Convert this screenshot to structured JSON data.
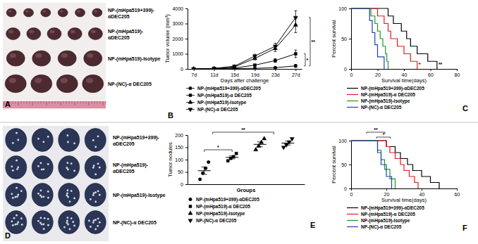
{
  "chart_data": [
    {
      "type": "photo",
      "panel_label": "A",
      "labels": [
        [
          "NP-(mHpa519+399)-",
          "αDEC205"
        ],
        [
          "NP-(mHpa519)-",
          "αDEC205"
        ],
        [
          "NP-(mHpa519)-Isotype"
        ],
        [
          "NP-(NC)-α DEC205"
        ]
      ]
    },
    {
      "type": "line",
      "panel_label": "B",
      "xlabel": "Days after challenge",
      "ylabel": "Tumor volume (mm³)",
      "categories": [
        "7d",
        "11d",
        "15d",
        "19d",
        "23d",
        "27d"
      ],
      "ylim": [
        0,
        4000
      ],
      "yticks": [
        0,
        1000,
        2000,
        3000,
        4000
      ],
      "series": [
        {
          "name": "NP-(mHpa519+399)-αDEC205",
          "color": "#000000",
          "marker": "circle",
          "values": [
            0,
            5,
            20,
            40,
            80,
            200
          ],
          "errors": [
            0,
            3,
            10,
            20,
            40,
            100
          ]
        },
        {
          "name": "NP-(mHpa519)-α DEC205",
          "color": "#000000",
          "marker": "square",
          "values": [
            0,
            15,
            60,
            250,
            550,
            1000
          ],
          "errors": [
            0,
            5,
            20,
            60,
            120,
            250
          ]
        },
        {
          "name": "NP-(mHpa519)-Isotype",
          "color": "#000000",
          "marker": "triangle-up",
          "values": [
            0,
            25,
            130,
            700,
            1350,
            2900
          ],
          "errors": [
            0,
            10,
            40,
            100,
            200,
            500
          ]
        },
        {
          "name": "NP-(NC)-α DEC205",
          "color": "#000000",
          "marker": "triangle-down",
          "values": [
            0,
            30,
            180,
            850,
            1500,
            3400
          ],
          "errors": [
            0,
            10,
            40,
            120,
            200,
            450
          ]
        }
      ],
      "annotations": [
        "**",
        "*"
      ]
    },
    {
      "type": "survival",
      "panel_label": "C",
      "xlabel": "Survival time(days)",
      "ylabel": "Percent survival",
      "xlim": [
        0,
        80
      ],
      "xticks": [
        0,
        20,
        40,
        60,
        80
      ],
      "ylim": [
        0,
        100
      ],
      "yticks": [
        0,
        50,
        100
      ],
      "series": [
        {
          "name": "NP-(mHpa519+399)-αDEC205",
          "color": "#000000",
          "x": [
            0,
            28,
            32,
            38,
            42,
            45,
            50,
            58,
            65
          ],
          "values": [
            100,
            87.5,
            75,
            62.5,
            50,
            37.5,
            25,
            12.5,
            0
          ]
        },
        {
          "name": "NP-(mHpa519)-α DEC205",
          "color": "#e41a1c",
          "x": [
            0,
            20,
            25,
            28,
            30,
            35,
            40,
            45,
            50
          ],
          "values": [
            100,
            87.5,
            75,
            62.5,
            50,
            37.5,
            25,
            12.5,
            0
          ]
        },
        {
          "name": "NP-(mHpa519)-Isotype",
          "color": "#1a9a1a",
          "x": [
            0,
            15,
            18,
            20,
            22,
            24,
            26,
            27,
            28
          ],
          "values": [
            100,
            87.5,
            75,
            62.5,
            50,
            37.5,
            25,
            12.5,
            0
          ]
        },
        {
          "name": "NP-(NC)-α DEC205",
          "color": "#1f3fbf",
          "x": [
            0,
            14,
            16,
            18,
            20,
            25
          ],
          "values": [
            100,
            80,
            60,
            40,
            20,
            0
          ]
        }
      ],
      "annotations": [
        "*",
        "**"
      ]
    },
    {
      "type": "photo",
      "panel_label": "D",
      "labels": [
        [
          "NP-(mHpa519+399)-",
          "αDEC205"
        ],
        [
          "NP-(mHpa519)-",
          "αDEC205"
        ],
        [
          "NP-(mHpa519)-Isotype"
        ],
        [
          "NP-(NC)-α DEC205"
        ]
      ]
    },
    {
      "type": "dot",
      "panel_label": "E",
      "xlabel": "Groups",
      "ylabel": "Tumor nodules",
      "ylim": [
        0,
        200
      ],
      "yticks": [
        0,
        50,
        100,
        150,
        200
      ],
      "series": [
        {
          "name": "NP-(mHpa519+399)-αDEC205",
          "color": "#000000",
          "marker": "circle",
          "values": [
            20,
            45,
            65,
            90
          ],
          "mean": 55,
          "error": 15
        },
        {
          "name": "NP-(mHpa519)-α DEC205",
          "color": "#000000",
          "marker": "square",
          "values": [
            95,
            105,
            112,
            125
          ],
          "mean": 109,
          "error": 6
        },
        {
          "name": "NP-(mHpa519)-Isotype",
          "color": "#000000",
          "marker": "triangle-up",
          "values": [
            140,
            155,
            170,
            185
          ],
          "mean": 162,
          "error": 10
        },
        {
          "name": "NP-(NC)-α DEC205",
          "color": "#000000",
          "marker": "triangle-down",
          "values": [
            150,
            160,
            172,
            185
          ],
          "mean": 167,
          "error": 8
        }
      ],
      "annotations": [
        "*",
        "**"
      ]
    },
    {
      "type": "survival",
      "panel_label": "F",
      "xlabel": "Survival time(days)",
      "ylabel": "Percent survival",
      "xlim": [
        0,
        60
      ],
      "xticks": [
        0,
        20,
        40,
        60
      ],
      "ylim": [
        0,
        100
      ],
      "yticks": [
        0,
        50,
        100
      ],
      "series": [
        {
          "name": "NP-(mHpa519+399)-αDEC205",
          "color": "#000000",
          "x": [
            0,
            20,
            25,
            28,
            32,
            35,
            40,
            45,
            50
          ],
          "values": [
            100,
            87.5,
            75,
            62.5,
            50,
            37.5,
            25,
            12.5,
            0
          ]
        },
        {
          "name": "NP-(mHpa519)-α DEC205",
          "color": "#e41a1c",
          "x": [
            0,
            20,
            22,
            25,
            28,
            30,
            33,
            36,
            38
          ],
          "values": [
            100,
            87.5,
            75,
            62.5,
            50,
            37.5,
            25,
            12.5,
            0
          ]
        },
        {
          "name": "NP-(mHpa519)-Isotype",
          "color": "#1a9a1a",
          "x": [
            0,
            15,
            17,
            19,
            22,
            25
          ],
          "values": [
            100,
            80,
            60,
            40,
            20,
            0
          ]
        },
        {
          "name": "NP-(NC)-α DEC205",
          "color": "#1f3fbf",
          "x": [
            0,
            15,
            17,
            20,
            23
          ],
          "values": [
            100,
            75,
            50,
            25,
            0
          ]
        }
      ],
      "annotations": [
        "**",
        "*"
      ]
    }
  ]
}
